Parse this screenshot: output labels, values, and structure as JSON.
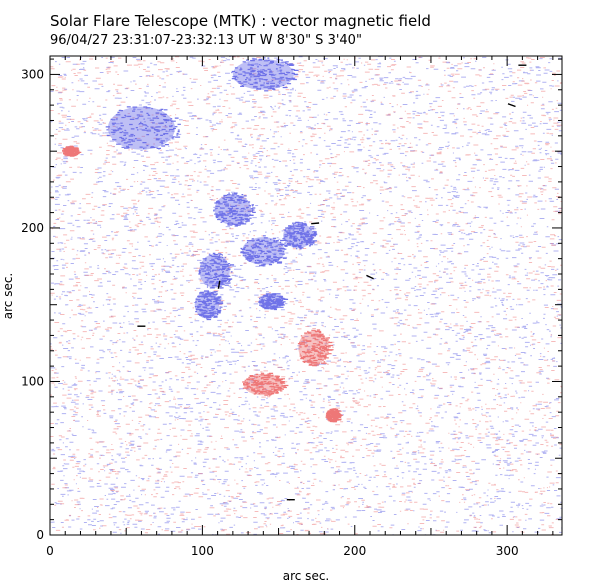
{
  "chart_data": {
    "type": "heatmap",
    "title": "Solar Flare Telescope (MTK) : vector magnetic field",
    "subtitle": "96/04/27  23:31:07-23:32:13 UT     W 8'30\"  S 3'40\"",
    "xlabel": "arc sec.",
    "ylabel": "arc sec.",
    "xlim": [
      0,
      336
    ],
    "ylim": [
      0,
      312
    ],
    "x_ticks": [
      0,
      100,
      200,
      300
    ],
    "y_ticks": [
      0,
      100,
      200,
      300
    ],
    "grid": false,
    "colors": {
      "negative_polarity": "#6f72e8",
      "positive_polarity": "#ee7777",
      "transverse_vectors": "#000000"
    },
    "regions": [
      {
        "polarity": "negative",
        "x": 140,
        "y": 185,
        "rx": 14,
        "ry": 9
      },
      {
        "polarity": "negative",
        "x": 163,
        "y": 195,
        "rx": 10,
        "ry": 8
      },
      {
        "polarity": "negative",
        "x": 108,
        "y": 172,
        "rx": 10,
        "ry": 11
      },
      {
        "polarity": "negative",
        "x": 103,
        "y": 150,
        "rx": 8,
        "ry": 9
      },
      {
        "polarity": "negative",
        "x": 145,
        "y": 152,
        "rx": 8,
        "ry": 5
      },
      {
        "polarity": "negative",
        "x": 120,
        "y": 212,
        "rx": 12,
        "ry": 10
      },
      {
        "polarity": "negative",
        "x": 140,
        "y": 300,
        "rx": 20,
        "ry": 10
      },
      {
        "polarity": "negative",
        "x": 60,
        "y": 265,
        "rx": 22,
        "ry": 14
      },
      {
        "polarity": "positive",
        "x": 173,
        "y": 122,
        "rx": 10,
        "ry": 11
      },
      {
        "polarity": "positive",
        "x": 140,
        "y": 98,
        "rx": 13,
        "ry": 7
      },
      {
        "polarity": "positive",
        "x": 185,
        "y": 78,
        "rx": 4,
        "ry": 4
      },
      {
        "polarity": "positive",
        "x": 13,
        "y": 250,
        "rx": 5,
        "ry": 3
      }
    ],
    "vectors": [
      {
        "x": 174,
        "y": 203,
        "angle": 5
      },
      {
        "x": 210,
        "y": 168,
        "angle": -25
      },
      {
        "x": 111,
        "y": 163,
        "angle": 80
      },
      {
        "x": 60,
        "y": 136,
        "angle": 0
      },
      {
        "x": 158,
        "y": 23,
        "angle": 0
      },
      {
        "x": 303,
        "y": 280,
        "angle": -20
      },
      {
        "x": 310,
        "y": 306,
        "angle": 0
      }
    ]
  }
}
